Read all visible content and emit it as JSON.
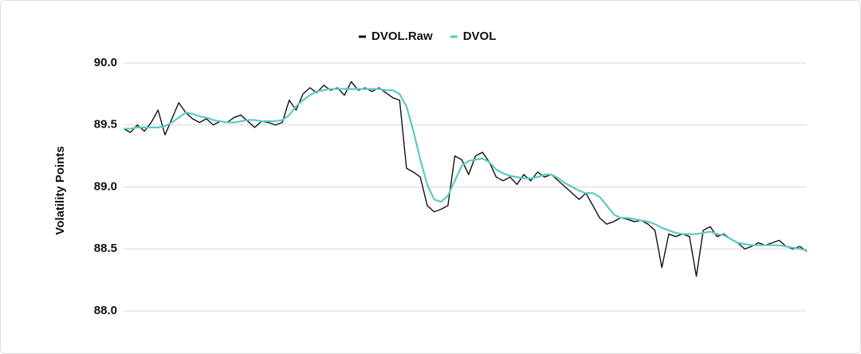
{
  "chart_data": {
    "type": "line",
    "y_label": "Volatility Points",
    "ylim": [
      88.0,
      90.0
    ],
    "yticks": [
      {
        "value": 88.0,
        "label": "88.0"
      },
      {
        "value": 88.5,
        "label": "88.5"
      },
      {
        "value": 89.0,
        "label": "89.0"
      },
      {
        "value": 89.5,
        "label": "89.5"
      },
      {
        "value": 90.0,
        "label": "90.0"
      }
    ],
    "grid": true,
    "legend": "top",
    "series": [
      {
        "name": "DVOL.Raw",
        "color": "#111111",
        "values": [
          89.47,
          89.44,
          89.5,
          89.45,
          89.52,
          89.62,
          89.42,
          89.55,
          89.68,
          89.6,
          89.55,
          89.52,
          89.55,
          89.5,
          89.53,
          89.52,
          89.56,
          89.58,
          89.53,
          89.48,
          89.53,
          89.52,
          89.5,
          89.52,
          89.7,
          89.62,
          89.75,
          89.8,
          89.76,
          89.82,
          89.78,
          89.8,
          89.74,
          89.85,
          89.78,
          89.8,
          89.77,
          89.8,
          89.76,
          89.72,
          89.7,
          89.15,
          89.12,
          89.08,
          88.85,
          88.8,
          88.82,
          88.85,
          89.25,
          89.22,
          89.1,
          89.25,
          89.28,
          89.2,
          89.08,
          89.05,
          89.08,
          89.02,
          89.1,
          89.05,
          89.12,
          89.08,
          89.1,
          89.05,
          89.0,
          88.95,
          88.9,
          88.95,
          88.85,
          88.75,
          88.7,
          88.72,
          88.75,
          88.74,
          88.72,
          88.73,
          88.7,
          88.65,
          88.35,
          88.62,
          88.6,
          88.62,
          88.6,
          88.28,
          88.65,
          88.68,
          88.6,
          88.62,
          88.58,
          88.55,
          88.5,
          88.52,
          88.55,
          88.53,
          88.55,
          88.57,
          88.52,
          88.5,
          88.52,
          88.48
        ]
      },
      {
        "name": "DVOL",
        "color": "#5ec9c1",
        "values": [
          89.47,
          89.47,
          89.48,
          89.48,
          89.48,
          89.48,
          89.49,
          89.52,
          89.56,
          89.6,
          89.59,
          89.57,
          89.56,
          89.54,
          89.53,
          89.52,
          89.52,
          89.53,
          89.54,
          89.54,
          89.53,
          89.53,
          89.53,
          89.54,
          89.58,
          89.65,
          89.7,
          89.74,
          89.77,
          89.78,
          89.79,
          89.79,
          89.79,
          89.79,
          89.79,
          89.79,
          89.79,
          89.79,
          89.78,
          89.78,
          89.75,
          89.65,
          89.45,
          89.22,
          89.02,
          88.9,
          88.88,
          88.93,
          89.05,
          89.17,
          89.21,
          89.22,
          89.23,
          89.2,
          89.14,
          89.11,
          89.09,
          89.08,
          89.07,
          89.07,
          89.08,
          89.1,
          89.1,
          89.07,
          89.03,
          89.0,
          88.97,
          88.95,
          88.95,
          88.92,
          88.85,
          88.78,
          88.75,
          88.75,
          88.74,
          88.73,
          88.72,
          88.7,
          88.67,
          88.65,
          88.63,
          88.62,
          88.62,
          88.62,
          88.63,
          88.64,
          88.62,
          88.61,
          88.58,
          88.55,
          88.54,
          88.53,
          88.53,
          88.53,
          88.53,
          88.53,
          88.52,
          88.51,
          88.5,
          88.49
        ]
      }
    ]
  }
}
